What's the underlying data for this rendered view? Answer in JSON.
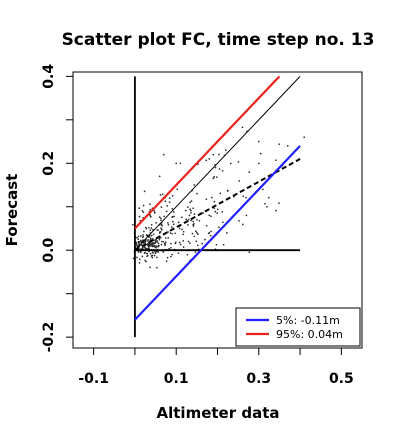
{
  "chart_data": {
    "type": "scatter",
    "title": "Scatter plot FC, time step no. 13",
    "xlabel": "Altimeter data",
    "ylabel": "Forecast",
    "xlim": [
      -0.15,
      0.55
    ],
    "ylim": [
      -0.225,
      0.41
    ],
    "xticks": [
      -0.1,
      0.1,
      0.3,
      0.5
    ],
    "xtick_labels": [
      "-0.1",
      "0.1",
      "0.3",
      "0.5"
    ],
    "yticks": [
      -0.2,
      0,
      0.2,
      0.4
    ],
    "ytick_labels": [
      "-0.2",
      "0.0",
      "0.2",
      "0.4"
    ],
    "grid": false,
    "legend_position": "bottom-right",
    "reference_lines": {
      "identity": {
        "from": [
          0,
          0
        ],
        "to": [
          0.4,
          0.4
        ],
        "color": "#000000"
      },
      "zero_x": {
        "from": [
          0,
          0
        ],
        "to": [
          0.4,
          0
        ],
        "color": "#000000"
      },
      "zero_y": {
        "from": [
          0,
          -0.2
        ],
        "to": [
          0,
          0.4
        ],
        "color": "#000000"
      },
      "regression": {
        "from": [
          0,
          0
        ],
        "to": [
          0.4,
          0.21
        ],
        "color": "#000000",
        "dash": true
      },
      "p95": {
        "from": [
          0,
          0.05
        ],
        "to": [
          0.35,
          0.4
        ],
        "color": "#e8231c"
      },
      "p5": {
        "from": [
          0,
          -0.16
        ],
        "to": [
          0.4,
          0.24
        ],
        "color": "#1f1fff"
      }
    },
    "legend": [
      {
        "label": "5%: -0.11m",
        "color": "#1f1fff"
      },
      {
        "label": "95%:  0.04m",
        "color": "#e8231c"
      }
    ],
    "point_cloud": [
      {
        "cx": 0.03,
        "cy": 0.01,
        "sx": 0.02,
        "sy": 0.015,
        "n": 170
      },
      {
        "cx": 0.09,
        "cy": 0.05,
        "sx": 0.05,
        "sy": 0.04,
        "n": 130
      },
      {
        "cx": 0.18,
        "cy": 0.11,
        "sx": 0.07,
        "sy": 0.06,
        "n": 60
      },
      {
        "cx": 0.3,
        "cy": 0.18,
        "sx": 0.06,
        "sy": 0.05,
        "n": 12
      }
    ],
    "points": [
      [
        0.41,
        0.26
      ],
      [
        0.37,
        0.24
      ],
      [
        0.3,
        0.25
      ],
      [
        0.3,
        0.2
      ],
      [
        0.32,
        0.1
      ],
      [
        0.31,
        0.14
      ],
      [
        0.27,
        0.08
      ],
      [
        0.22,
        0.23
      ],
      [
        0.19,
        0.22
      ],
      [
        0.18,
        0.21
      ],
      [
        0.1,
        0.2
      ],
      [
        0.11,
        0.2
      ],
      [
        0.07,
        0.22
      ],
      [
        0.06,
        0.17
      ],
      [
        0.15,
        0.07
      ],
      [
        0.18,
        0.08
      ],
      [
        0.21,
        0.05
      ],
      [
        0.13,
        0.02
      ],
      [
        0.15,
        0.04
      ],
      [
        0.09,
        -0.01
      ]
    ]
  }
}
